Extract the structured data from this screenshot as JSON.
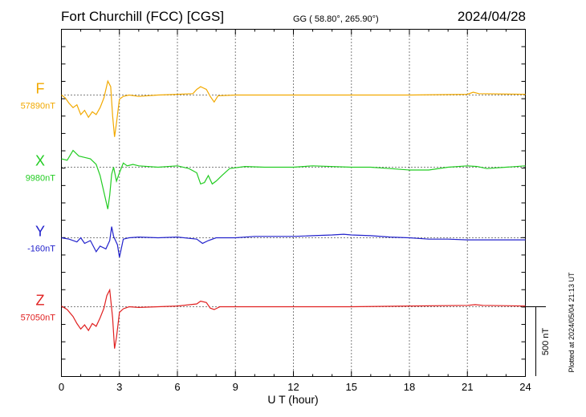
{
  "header": {
    "station": "Fort Churchill (FCC)  [CGS]",
    "coords": "GG ( 58.80°, 265.90°)",
    "date": "2024/04/28"
  },
  "plotted_note": "Plotted at 2024/05/04 21:13 UT",
  "scale_label": "500 nT",
  "chart_data": {
    "type": "line",
    "xlabel": "U T (hour)",
    "xlim": [
      0,
      24
    ],
    "xticks": [
      0,
      3,
      6,
      9,
      12,
      15,
      18,
      21,
      24
    ],
    "grid": true,
    "scale_nT": 500,
    "series": [
      {
        "name": "F",
        "baseline_label": "57890nT",
        "baseline_nT": 57890,
        "color": "#f2a900",
        "points": [
          [
            0,
            0
          ],
          [
            0.2,
            -20
          ],
          [
            0.4,
            -60
          ],
          [
            0.6,
            -90
          ],
          [
            0.8,
            -70
          ],
          [
            1.0,
            -140
          ],
          [
            1.2,
            -110
          ],
          [
            1.4,
            -160
          ],
          [
            1.6,
            -120
          ],
          [
            1.8,
            -140
          ],
          [
            2.0,
            -90
          ],
          [
            2.2,
            -20
          ],
          [
            2.4,
            100
          ],
          [
            2.55,
            60
          ],
          [
            2.65,
            -150
          ],
          [
            2.75,
            -300
          ],
          [
            2.85,
            -200
          ],
          [
            3.0,
            -30
          ],
          [
            3.2,
            -10
          ],
          [
            3.5,
            0
          ],
          [
            4.0,
            -10
          ],
          [
            5.0,
            0
          ],
          [
            6.0,
            5
          ],
          [
            6.8,
            10
          ],
          [
            7.0,
            40
          ],
          [
            7.2,
            60
          ],
          [
            7.5,
            40
          ],
          [
            7.7,
            -10
          ],
          [
            7.9,
            -50
          ],
          [
            8.1,
            -5
          ],
          [
            9,
            0
          ],
          [
            12,
            0
          ],
          [
            15,
            0
          ],
          [
            18,
            0
          ],
          [
            21,
            5
          ],
          [
            21.3,
            20
          ],
          [
            21.6,
            10
          ],
          [
            24,
            5
          ]
        ]
      },
      {
        "name": "X",
        "baseline_label": "9980nT",
        "baseline_nT": 9980,
        "color": "#22cc22",
        "points": [
          [
            0,
            60
          ],
          [
            0.3,
            50
          ],
          [
            0.6,
            120
          ],
          [
            0.9,
            80
          ],
          [
            1.2,
            70
          ],
          [
            1.5,
            60
          ],
          [
            1.8,
            20
          ],
          [
            2.0,
            -60
          ],
          [
            2.2,
            -180
          ],
          [
            2.4,
            -300
          ],
          [
            2.5,
            -200
          ],
          [
            2.6,
            -50
          ],
          [
            2.7,
            0
          ],
          [
            2.85,
            -100
          ],
          [
            3.0,
            -40
          ],
          [
            3.2,
            30
          ],
          [
            3.4,
            10
          ],
          [
            3.7,
            20
          ],
          [
            4.0,
            10
          ],
          [
            5.0,
            0
          ],
          [
            6.0,
            10
          ],
          [
            6.6,
            -10
          ],
          [
            7.0,
            -40
          ],
          [
            7.2,
            -120
          ],
          [
            7.4,
            -110
          ],
          [
            7.6,
            -60
          ],
          [
            7.8,
            -120
          ],
          [
            8.0,
            -100
          ],
          [
            8.3,
            -60
          ],
          [
            8.7,
            -10
          ],
          [
            9.5,
            5
          ],
          [
            10.5,
            0
          ],
          [
            12,
            0
          ],
          [
            13,
            10
          ],
          [
            15,
            0
          ],
          [
            16,
            0
          ],
          [
            17,
            -10
          ],
          [
            18,
            -20
          ],
          [
            19,
            -20
          ],
          [
            20,
            0
          ],
          [
            21,
            10
          ],
          [
            21.5,
            5
          ],
          [
            22,
            -10
          ],
          [
            23,
            0
          ],
          [
            24,
            10
          ]
        ]
      },
      {
        "name": "Y",
        "baseline_label": "-160nT",
        "baseline_nT": -160,
        "color": "#2222cc",
        "points": [
          [
            0,
            0
          ],
          [
            0.4,
            -10
          ],
          [
            0.8,
            -30
          ],
          [
            1.0,
            0
          ],
          [
            1.2,
            -40
          ],
          [
            1.5,
            -20
          ],
          [
            1.8,
            -100
          ],
          [
            2.0,
            -60
          ],
          [
            2.3,
            -80
          ],
          [
            2.5,
            -20
          ],
          [
            2.6,
            80
          ],
          [
            2.7,
            10
          ],
          [
            2.9,
            -50
          ],
          [
            3.0,
            -140
          ],
          [
            3.2,
            -10
          ],
          [
            3.5,
            0
          ],
          [
            4.0,
            5
          ],
          [
            5.0,
            0
          ],
          [
            6.0,
            5
          ],
          [
            7.0,
            -10
          ],
          [
            7.3,
            -40
          ],
          [
            7.6,
            -20
          ],
          [
            8.0,
            0
          ],
          [
            9.0,
            0
          ],
          [
            10.0,
            10
          ],
          [
            11.0,
            10
          ],
          [
            12.0,
            10
          ],
          [
            13.0,
            15
          ],
          [
            14.0,
            20
          ],
          [
            14.6,
            25
          ],
          [
            15.0,
            20
          ],
          [
            16.0,
            15
          ],
          [
            17.0,
            5
          ],
          [
            18.0,
            0
          ],
          [
            19.0,
            -10
          ],
          [
            20.0,
            -10
          ],
          [
            21.0,
            -15
          ],
          [
            22.0,
            -15
          ],
          [
            23.0,
            -15
          ],
          [
            24.0,
            -15
          ]
        ]
      },
      {
        "name": "Z",
        "baseline_label": "57050nT",
        "baseline_nT": 57050,
        "color": "#e02020",
        "points": [
          [
            0,
            5
          ],
          [
            0.3,
            -20
          ],
          [
            0.6,
            -70
          ],
          [
            0.8,
            -120
          ],
          [
            1.0,
            -160
          ],
          [
            1.2,
            -130
          ],
          [
            1.4,
            -170
          ],
          [
            1.6,
            -120
          ],
          [
            1.8,
            -140
          ],
          [
            2.0,
            -80
          ],
          [
            2.2,
            -10
          ],
          [
            2.35,
            80
          ],
          [
            2.5,
            120
          ],
          [
            2.65,
            -80
          ],
          [
            2.75,
            -300
          ],
          [
            2.85,
            -220
          ],
          [
            3.0,
            -40
          ],
          [
            3.2,
            -15
          ],
          [
            3.5,
            0
          ],
          [
            4.0,
            -5
          ],
          [
            5.0,
            0
          ],
          [
            6.0,
            5
          ],
          [
            7.0,
            20
          ],
          [
            7.2,
            40
          ],
          [
            7.5,
            30
          ],
          [
            7.7,
            -10
          ],
          [
            7.9,
            -20
          ],
          [
            8.2,
            0
          ],
          [
            9,
            0
          ],
          [
            12,
            0
          ],
          [
            15,
            0
          ],
          [
            18,
            5
          ],
          [
            21,
            10
          ],
          [
            21.4,
            15
          ],
          [
            21.8,
            10
          ],
          [
            24,
            5
          ]
        ]
      }
    ]
  }
}
